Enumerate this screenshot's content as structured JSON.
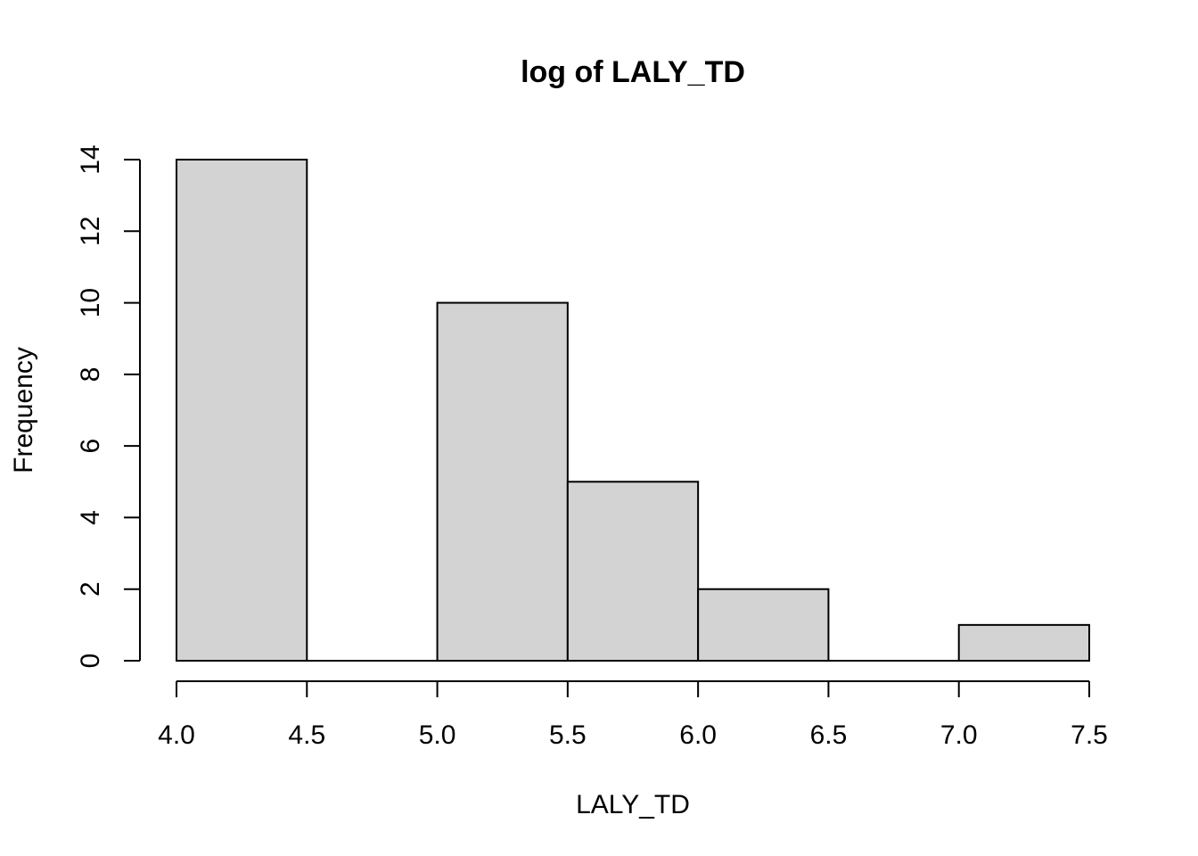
{
  "chart_data": {
    "type": "bar",
    "title": "log of LALY_TD",
    "xlabel": "LALY_TD",
    "ylabel": "Frequency",
    "bins": [
      {
        "start": 4.0,
        "end": 4.5,
        "count": 14
      },
      {
        "start": 4.5,
        "end": 5.0,
        "count": 0
      },
      {
        "start": 5.0,
        "end": 5.5,
        "count": 10
      },
      {
        "start": 5.5,
        "end": 6.0,
        "count": 5
      },
      {
        "start": 6.0,
        "end": 6.5,
        "count": 2
      },
      {
        "start": 6.5,
        "end": 7.0,
        "count": 0
      },
      {
        "start": 7.0,
        "end": 7.5,
        "count": 1
      }
    ],
    "xlim": [
      4.0,
      7.5
    ],
    "ylim": [
      0,
      14
    ],
    "xticks": [
      "4.0",
      "4.5",
      "5.0",
      "5.5",
      "6.0",
      "6.5",
      "7.0",
      "7.5"
    ],
    "yticks": [
      "0",
      "2",
      "4",
      "6",
      "8",
      "10",
      "12",
      "14"
    ],
    "bar_fill": "#d3d3d3",
    "bar_stroke": "#000000",
    "grid": false
  }
}
